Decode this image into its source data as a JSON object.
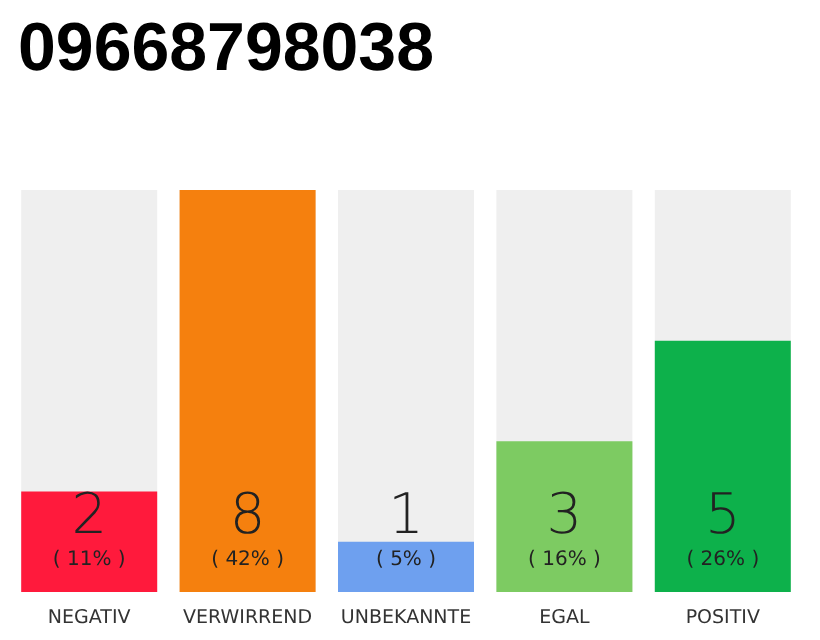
{
  "chart_data": {
    "type": "bar",
    "title": "09668798038",
    "categories": [
      "NEGATIV",
      "VERWIRREND",
      "UNBEKANNTE",
      "EGAL",
      "POSITIV"
    ],
    "values": [
      2,
      8,
      1,
      3,
      5
    ],
    "colors": [
      "#ff1a3c",
      "#f5800e",
      "#6ea0ef",
      "#7dcb62",
      "#0db14b"
    ],
    "value_labels": [
      "2\n( 11% )",
      "8\n( 42% )",
      "1\n( 5% )",
      "3\n( 16% )",
      "5\n( 26% )"
    ]
  }
}
